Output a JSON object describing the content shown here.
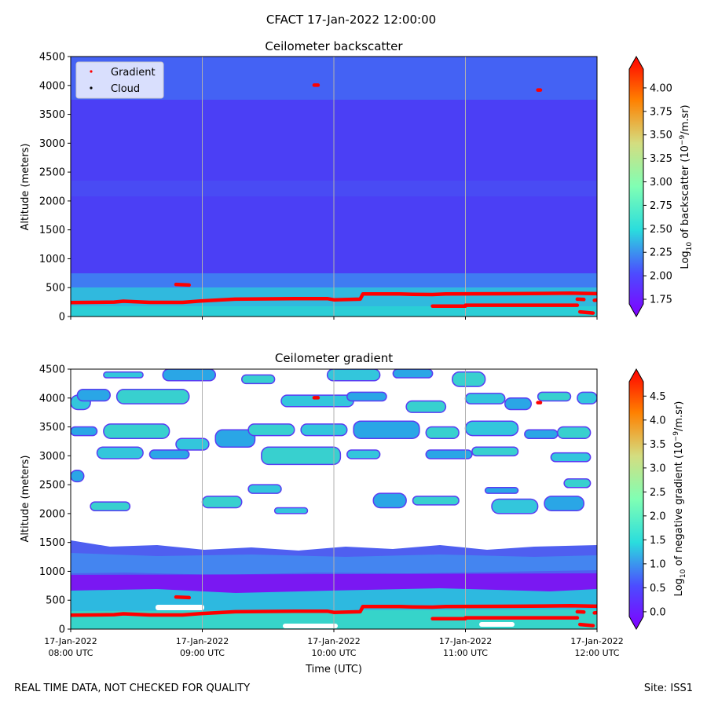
{
  "suptitle": "CFACT 17-Jan-2022 12:00:00",
  "footer": {
    "left": "REAL TIME DATA, NOT CHECKED FOR QUALITY",
    "right": "Site: ISS1"
  },
  "colors": {
    "rainbow": [
      "#8000ff",
      "#4c4cff",
      "#2adddd",
      "#80ffb4",
      "#d4dd80",
      "#ff8000",
      "#ff0000"
    ],
    "gradient_points": "#ff0000",
    "cloud_points": "#000000",
    "grid": "#b0b0b0",
    "backscatter_low": "#4a3cf5",
    "backscatter_band": "#3f7cf2",
    "backscatter_surface": "#2fc1d8",
    "gradient_patch": "#2bb9e2",
    "gradient_band": "#4f61f0"
  },
  "chart_data": [
    {
      "type": "heatmap",
      "title": "Ceilometer backscatter",
      "xlabel": "",
      "ylabel": "Altitude (meters)",
      "ylim": [
        0,
        4500
      ],
      "yticks": [
        0,
        500,
        1000,
        1500,
        2000,
        2500,
        3000,
        3500,
        4000,
        4500
      ],
      "xticks_hours": [
        8,
        9,
        10,
        11,
        12
      ],
      "show_xtick_labels": false,
      "grid": true,
      "legend": {
        "placement": "top-left",
        "entries": [
          {
            "label": "Gradient",
            "color": "#ff0000"
          },
          {
            "label": "Cloud",
            "color": "#000000"
          }
        ]
      },
      "colorbar": {
        "label": "Log10 of backscatter (10^-9/m.sr)",
        "label_main": "Log",
        "label_sub": "10",
        "label_rest": " of backscatter (10",
        "label_sup": "−9",
        "label_end": "/m.sr)",
        "min": 1.7,
        "max": 4.2,
        "ticks": [
          "1.75",
          "2.00",
          "2.25",
          "2.50",
          "2.75",
          "3.00",
          "3.25",
          "3.50",
          "3.75",
          "4.00"
        ],
        "extend": "both"
      }
    },
    {
      "type": "heatmap",
      "title": "Ceilometer gradient",
      "xlabel": "Time (UTC)",
      "ylabel": "Altitude (meters)",
      "ylim": [
        0,
        4500
      ],
      "yticks": [
        0,
        500,
        1000,
        1500,
        2000,
        2500,
        3000,
        3500,
        4000,
        4500
      ],
      "xticks_hours": [
        8,
        9,
        10,
        11,
        12
      ],
      "xtick_labels": [
        {
          "date": "17-Jan-2022",
          "time": "08:00 UTC"
        },
        {
          "date": "17-Jan-2022",
          "time": "09:00 UTC"
        },
        {
          "date": "17-Jan-2022",
          "time": "10:00 UTC"
        },
        {
          "date": "17-Jan-2022",
          "time": "11:00 UTC"
        },
        {
          "date": "17-Jan-2022",
          "time": "12:00 UTC"
        }
      ],
      "grid": true,
      "colorbar": {
        "label": "Log10 of negative gradient (10^-9/m.sr)",
        "label_main": "Log",
        "label_sub": "10",
        "label_rest": " of negative gradient (10",
        "label_sup": "−9",
        "label_end": "/m.sr)",
        "min": -0.1,
        "max": 4.8,
        "ticks": [
          "0.0",
          "0.5",
          "1.0",
          "1.5",
          "2.0",
          "2.5",
          "3.0",
          "3.5",
          "4.0",
          "4.5"
        ],
        "extend": "both"
      }
    }
  ],
  "gradient_series": [
    [
      8.0,
      240
    ],
    [
      8.33,
      250
    ],
    [
      8.4,
      265
    ],
    [
      8.6,
      245
    ],
    [
      8.85,
      245
    ],
    [
      9.0,
      270
    ],
    [
      9.25,
      300
    ],
    [
      9.7,
      310
    ],
    [
      9.95,
      310
    ],
    [
      10.0,
      290
    ],
    [
      10.2,
      300
    ],
    [
      10.22,
      390
    ],
    [
      10.5,
      390
    ],
    [
      10.6,
      385
    ],
    [
      10.75,
      380
    ],
    [
      10.85,
      390
    ],
    [
      11.4,
      395
    ],
    [
      11.6,
      400
    ],
    [
      11.8,
      405
    ],
    [
      12.0,
      395
    ]
  ],
  "gradient_secondary": [
    {
      "x": [
        8.8,
        8.9
      ],
      "y": [
        555,
        545
      ]
    },
    {
      "x": [
        9.85,
        9.88
      ],
      "y": [
        4005,
        4005
      ]
    },
    {
      "x": [
        10.75,
        11.0
      ],
      "y": [
        180,
        180
      ]
    },
    {
      "x": [
        11.0,
        11.85
      ],
      "y": [
        195,
        195
      ]
    },
    {
      "x": [
        11.55,
        11.57
      ],
      "y": [
        3920,
        3920
      ]
    },
    {
      "x": [
        11.85,
        11.9
      ],
      "y": [
        300,
        295
      ]
    },
    {
      "x": [
        11.87,
        11.97
      ],
      "y": [
        80,
        60
      ]
    },
    {
      "x": [
        11.98,
        12.0
      ],
      "y": [
        280,
        285
      ]
    }
  ]
}
